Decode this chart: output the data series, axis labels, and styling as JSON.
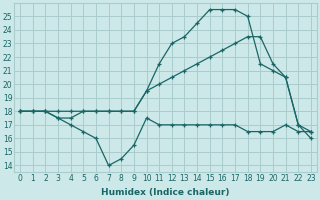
{
  "xlabel": "Humidex (Indice chaleur)",
  "background_color": "#cce8e8",
  "grid_color": "#aacccc",
  "line_color": "#1a6666",
  "xlim": [
    -0.5,
    23.5
  ],
  "ylim": [
    13.5,
    26
  ],
  "yticks": [
    14,
    15,
    16,
    17,
    18,
    19,
    20,
    21,
    22,
    23,
    24,
    25
  ],
  "xticks": [
    0,
    1,
    2,
    3,
    4,
    5,
    6,
    7,
    8,
    9,
    10,
    11,
    12,
    13,
    14,
    15,
    16,
    17,
    18,
    19,
    20,
    21,
    22,
    23
  ],
  "lines": [
    {
      "x": [
        0,
        1,
        2,
        3,
        4,
        5,
        6,
        7,
        8,
        9,
        10,
        11,
        12,
        13,
        14,
        15,
        16,
        17,
        18,
        19,
        20,
        21,
        22,
        23
      ],
      "y": [
        18,
        18,
        18,
        17.5,
        17,
        16.5,
        16,
        14,
        14.5,
        15.5,
        17.5,
        17,
        17,
        17,
        17,
        17,
        17,
        17,
        16.5,
        16.5,
        16.5,
        17,
        16.5,
        16.5
      ]
    },
    {
      "x": [
        0,
        1,
        2,
        3,
        4,
        5,
        6,
        7,
        8,
        9,
        10,
        11,
        12,
        13,
        14,
        15,
        16,
        17,
        18,
        19,
        20,
        21,
        22,
        23
      ],
      "y": [
        18,
        18,
        18,
        18,
        18,
        18,
        18,
        18,
        18,
        18,
        19.5,
        20,
        20.5,
        21,
        21.5,
        22,
        22.5,
        23,
        23.5,
        23.5,
        21.5,
        20.5,
        17,
        16.5
      ]
    },
    {
      "x": [
        0,
        1,
        2,
        3,
        4,
        5,
        6,
        7,
        8,
        9,
        10,
        11,
        12,
        13,
        14,
        15,
        16,
        17,
        18,
        19,
        20,
        21,
        22,
        23
      ],
      "y": [
        18,
        18,
        18,
        17.5,
        17.5,
        18,
        18,
        18,
        18,
        18,
        19.5,
        21.5,
        23,
        23.5,
        24.5,
        25.5,
        25.5,
        25.5,
        25,
        21.5,
        21,
        20.5,
        17,
        16
      ]
    }
  ]
}
